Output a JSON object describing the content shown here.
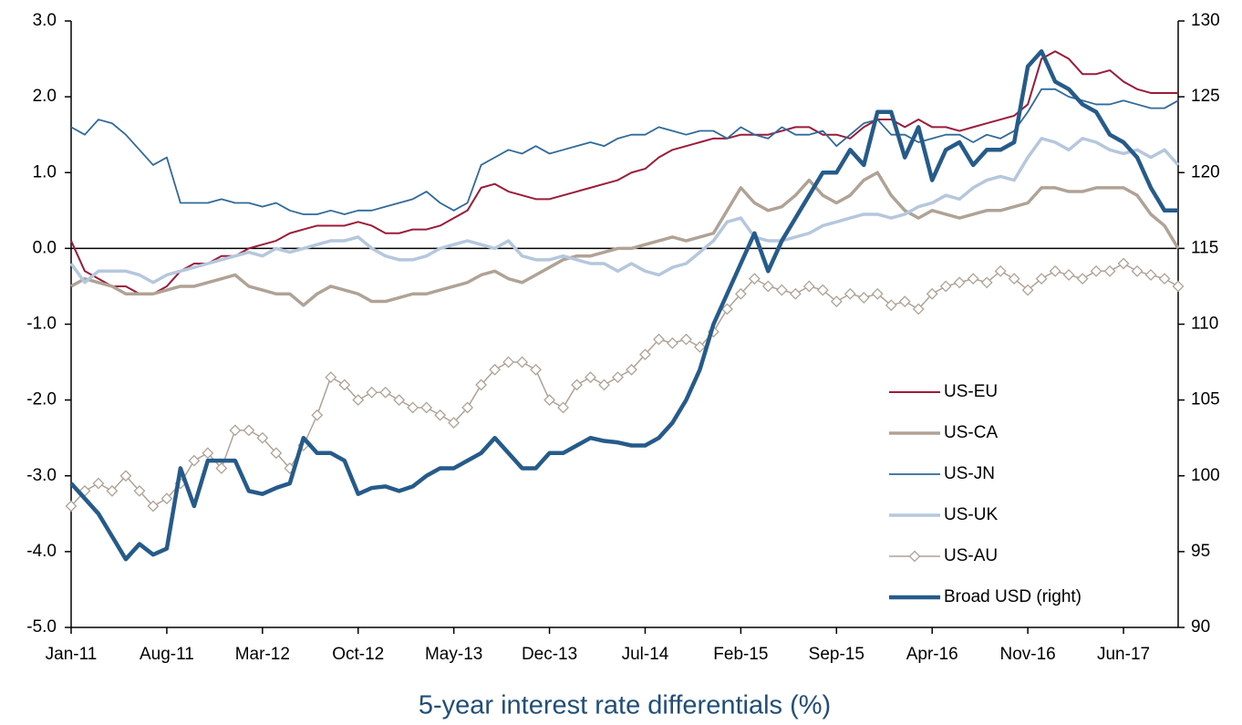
{
  "chart_data": {
    "type": "line",
    "title": "5-year interest rate differentials (%)",
    "categories": [
      "Jan-11",
      null,
      null,
      null,
      null,
      null,
      null,
      "Aug-11",
      null,
      null,
      null,
      null,
      null,
      null,
      "Mar-12",
      null,
      null,
      null,
      null,
      null,
      null,
      "Oct-12",
      null,
      null,
      null,
      null,
      null,
      null,
      "May-13",
      null,
      null,
      null,
      null,
      null,
      null,
      "Dec-13",
      null,
      null,
      null,
      null,
      null,
      null,
      "Jul-14",
      null,
      null,
      null,
      null,
      null,
      null,
      "Feb-15",
      null,
      null,
      null,
      null,
      null,
      null,
      "Sep-15",
      null,
      null,
      null,
      null,
      null,
      null,
      "Apr-16",
      null,
      null,
      null,
      null,
      null,
      null,
      "Nov-16",
      null,
      null,
      null,
      null,
      null,
      null,
      "Jun-17",
      null,
      null,
      null,
      null
    ],
    "ylim": [
      -5,
      3
    ],
    "yticks": [
      {
        "value": -5,
        "label": "-5.0"
      },
      {
        "value": -4,
        "label": "-4.0"
      },
      {
        "value": -3,
        "label": "-3.0"
      },
      {
        "value": -2,
        "label": "-2.0"
      },
      {
        "value": -1,
        "label": "-1.0"
      },
      {
        "value": 0,
        "label": "0.0"
      },
      {
        "value": 1,
        "label": "1.0"
      },
      {
        "value": 2,
        "label": "2.0"
      },
      {
        "value": 3,
        "label": "3.0"
      }
    ],
    "y2lim": [
      90,
      130
    ],
    "y2ticks": [
      90,
      95,
      100,
      105,
      110,
      115,
      120,
      125,
      130
    ],
    "legend": "lower right",
    "series": [
      {
        "name": "US-EU",
        "color": "#9b1b3a",
        "line_width": 2,
        "values": [
          0.1,
          -0.3,
          -0.4,
          -0.5,
          -0.5,
          -0.6,
          -0.6,
          -0.5,
          -0.3,
          -0.2,
          -0.2,
          -0.1,
          -0.1,
          0.0,
          0.05,
          0.1,
          0.2,
          0.25,
          0.3,
          0.3,
          0.3,
          0.35,
          0.3,
          0.2,
          0.2,
          0.25,
          0.25,
          0.3,
          0.4,
          0.5,
          0.8,
          0.85,
          0.75,
          0.7,
          0.65,
          0.65,
          0.7,
          0.75,
          0.8,
          0.85,
          0.9,
          1.0,
          1.05,
          1.2,
          1.3,
          1.35,
          1.4,
          1.45,
          1.45,
          1.5,
          1.5,
          1.5,
          1.55,
          1.6,
          1.6,
          1.5,
          1.5,
          1.45,
          1.6,
          1.7,
          1.7,
          1.6,
          1.7,
          1.6,
          1.6,
          1.55,
          1.6,
          1.65,
          1.7,
          1.75,
          1.9,
          2.5,
          2.6,
          2.5,
          2.3,
          2.3,
          2.35,
          2.2,
          2.1,
          2.05,
          2.05,
          2.05
        ]
      },
      {
        "name": "US-CA",
        "color": "#b0a295",
        "line_width": 3.5,
        "values": [
          -0.5,
          -0.4,
          -0.45,
          -0.5,
          -0.6,
          -0.6,
          -0.6,
          -0.55,
          -0.5,
          -0.5,
          -0.45,
          -0.4,
          -0.35,
          -0.5,
          -0.55,
          -0.6,
          -0.6,
          -0.75,
          -0.6,
          -0.5,
          -0.55,
          -0.6,
          -0.7,
          -0.7,
          -0.65,
          -0.6,
          -0.6,
          -0.55,
          -0.5,
          -0.45,
          -0.35,
          -0.3,
          -0.4,
          -0.45,
          -0.35,
          -0.25,
          -0.15,
          -0.1,
          -0.1,
          -0.05,
          0.0,
          0.0,
          0.05,
          0.1,
          0.15,
          0.1,
          0.15,
          0.2,
          0.5,
          0.8,
          0.6,
          0.5,
          0.55,
          0.7,
          0.9,
          0.7,
          0.6,
          0.7,
          0.9,
          1.0,
          0.7,
          0.5,
          0.4,
          0.5,
          0.45,
          0.4,
          0.45,
          0.5,
          0.5,
          0.55,
          0.6,
          0.8,
          0.8,
          0.75,
          0.75,
          0.8,
          0.8,
          0.8,
          0.7,
          0.45,
          0.3,
          0.0
        ]
      },
      {
        "name": "US-JN",
        "color": "#2e6a9a",
        "line_width": 1.8,
        "values": [
          1.6,
          1.5,
          1.7,
          1.65,
          1.5,
          1.3,
          1.1,
          1.2,
          0.6,
          0.6,
          0.6,
          0.65,
          0.6,
          0.6,
          0.55,
          0.6,
          0.5,
          0.45,
          0.45,
          0.5,
          0.45,
          0.5,
          0.5,
          0.55,
          0.6,
          0.65,
          0.75,
          0.6,
          0.5,
          0.6,
          1.1,
          1.2,
          1.3,
          1.25,
          1.35,
          1.25,
          1.3,
          1.35,
          1.4,
          1.35,
          1.45,
          1.5,
          1.5,
          1.6,
          1.55,
          1.5,
          1.55,
          1.55,
          1.45,
          1.6,
          1.5,
          1.45,
          1.6,
          1.5,
          1.5,
          1.55,
          1.35,
          1.5,
          1.65,
          1.7,
          1.5,
          1.5,
          1.4,
          1.45,
          1.5,
          1.5,
          1.4,
          1.5,
          1.45,
          1.55,
          1.8,
          2.1,
          2.1,
          2.0,
          1.95,
          1.9,
          1.9,
          1.95,
          1.9,
          1.85,
          1.85,
          1.95
        ]
      },
      {
        "name": "US-UK",
        "color": "#b4c7dd",
        "line_width": 3.5,
        "values": [
          -0.2,
          -0.45,
          -0.3,
          -0.3,
          -0.3,
          -0.35,
          -0.45,
          -0.35,
          -0.3,
          -0.25,
          -0.2,
          -0.15,
          -0.1,
          -0.05,
          -0.1,
          0.0,
          -0.05,
          0.0,
          0.05,
          0.1,
          0.1,
          0.15,
          0.0,
          -0.1,
          -0.15,
          -0.15,
          -0.1,
          0.0,
          0.05,
          0.1,
          0.05,
          0.0,
          0.1,
          -0.1,
          -0.15,
          -0.15,
          -0.1,
          -0.15,
          -0.2,
          -0.2,
          -0.3,
          -0.2,
          -0.3,
          -0.35,
          -0.25,
          -0.2,
          -0.05,
          0.1,
          0.35,
          0.4,
          0.15,
          0.1,
          0.1,
          0.15,
          0.2,
          0.3,
          0.35,
          0.4,
          0.45,
          0.45,
          0.4,
          0.45,
          0.55,
          0.6,
          0.7,
          0.65,
          0.8,
          0.9,
          0.95,
          0.9,
          1.2,
          1.45,
          1.4,
          1.3,
          1.45,
          1.4,
          1.3,
          1.25,
          1.3,
          1.2,
          1.3,
          1.1
        ]
      },
      {
        "name": "US-AU",
        "color": "#b0a295",
        "line_width": 1.5,
        "marker": "diamond",
        "values": [
          -3.4,
          -3.2,
          -3.1,
          -3.2,
          -3.0,
          -3.2,
          -3.4,
          -3.3,
          -3.1,
          -2.8,
          -2.7,
          -2.9,
          -2.4,
          -2.4,
          -2.5,
          -2.7,
          -2.9,
          -2.6,
          -2.2,
          -1.7,
          -1.8,
          -2.0,
          -1.9,
          -1.9,
          -2.0,
          -2.1,
          -2.1,
          -2.2,
          -2.3,
          -2.1,
          -1.8,
          -1.6,
          -1.5,
          -1.5,
          -1.6,
          -2.0,
          -2.1,
          -1.8,
          -1.7,
          -1.8,
          -1.7,
          -1.6,
          -1.4,
          -1.2,
          -1.25,
          -1.2,
          -1.3,
          -1.1,
          -0.8,
          -0.6,
          -0.4,
          -0.5,
          -0.55,
          -0.6,
          -0.5,
          -0.55,
          -0.7,
          -0.6,
          -0.65,
          -0.6,
          -0.75,
          -0.7,
          -0.8,
          -0.6,
          -0.5,
          -0.45,
          -0.4,
          -0.45,
          -0.3,
          -0.4,
          -0.55,
          -0.4,
          -0.3,
          -0.35,
          -0.4,
          -0.3,
          -0.3,
          -0.2,
          -0.3,
          -0.35,
          -0.4,
          -0.5
        ]
      },
      {
        "name": "Broad USD (right)",
        "color": "#245b8a",
        "line_width": 4.5,
        "axis": "y2",
        "values": [
          99.5,
          98.5,
          97.5,
          96,
          94.5,
          95.5,
          94.8,
          95.2,
          100.5,
          98,
          101,
          101,
          101,
          99,
          98.8,
          99.2,
          99.5,
          102.5,
          101.5,
          101.5,
          101,
          98.8,
          99.2,
          99.3,
          99,
          99.3,
          100,
          100.5,
          100.5,
          101,
          101.5,
          102.5,
          101.5,
          100.5,
          100.5,
          101.5,
          101.5,
          102,
          102.5,
          102.3,
          102.2,
          102,
          102,
          102.5,
          103.5,
          105,
          107,
          110,
          112,
          114,
          116,
          113.5,
          115.5,
          117,
          118.5,
          120,
          120,
          121.5,
          120.5,
          124,
          124,
          121,
          123,
          119.5,
          121.5,
          122,
          120.5,
          121.5,
          121.5,
          122,
          127,
          128,
          126,
          125.5,
          124.5,
          124,
          122.5,
          122,
          121,
          119,
          117.5,
          117.5
        ]
      }
    ]
  }
}
